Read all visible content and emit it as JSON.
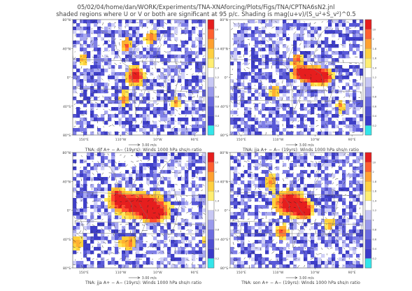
{
  "header": {
    "line1": "05/02/04/home/dan/WORK/Experiments/TNA-XNAforcing/Plots/Figs/TNA/CPTNA6sN2.jnl",
    "line2": "shaded regions where U or V or both are significant at 95 p/c. Shading is mag(u+v)/(S_u²+S_v²)^0.5"
  },
  "chart_data": [
    {
      "type": "heatmap",
      "panel": "top-left",
      "title": "TNA: djf A+ − A−  (19yrs): Winds 1000 hPa shs/n ratio",
      "ytick_labels": [
        "80°N",
        "40°N",
        "0°",
        "40°S",
        "80°S"
      ],
      "xtick_labels": [
        "150°E",
        "110°W",
        "10°W",
        "90°E"
      ],
      "reference_vector": "3.00 m/s",
      "colorbar": {
        "ticks": [
          "0.2",
          "0.4",
          "0.6",
          "0.8",
          "1",
          "1.2",
          "1.4",
          "1.6",
          "1.8",
          "2",
          "10"
        ],
        "range": [
          0,
          10
        ]
      },
      "hotspots": [
        {
          "lon": -70,
          "lat": 2,
          "sx": 18,
          "sy": 10,
          "amp": 2.1
        },
        {
          "lon": -95,
          "lat": 45,
          "sx": 12,
          "sy": 9,
          "amp": 1.5
        },
        {
          "lon": -30,
          "lat": 55,
          "sx": 15,
          "sy": 8,
          "amp": 1.4
        },
        {
          "lon": -100,
          "lat": -30,
          "sx": 12,
          "sy": 10,
          "amp": 1.3
        },
        {
          "lon": 40,
          "lat": -35,
          "sx": 10,
          "sy": 8,
          "amp": 1.3
        },
        {
          "lon": 150,
          "lat": 25,
          "sx": 12,
          "sy": 8,
          "amp": 1.2
        }
      ]
    },
    {
      "type": "heatmap",
      "panel": "top-right",
      "title": "TNA: jja A+ − A−  (19yrs): Winds 1000 hPa shs/n ratio",
      "ytick_labels": [
        "80°N",
        "40°N",
        "0°",
        "40°S",
        "80°S"
      ],
      "xtick_labels": [
        "150°E",
        "110°W",
        "10°W",
        "90°E"
      ],
      "reference_vector": "3.00 m/s",
      "colorbar": {
        "ticks": [
          "0.2",
          "0.4",
          "0.6",
          "0.8",
          "1",
          "1.2",
          "1.4",
          "1.6",
          "1.8",
          "2",
          "10"
        ],
        "range": [
          0,
          10
        ]
      },
      "hotspots": [
        {
          "lon": -30,
          "lat": 5,
          "sx": 30,
          "sy": 8,
          "amp": 2.4
        },
        {
          "lon": 10,
          "lat": 0,
          "sx": 22,
          "sy": 7,
          "amp": 2.0
        },
        {
          "lon": -60,
          "lat": 25,
          "sx": 12,
          "sy": 8,
          "amp": 1.4
        },
        {
          "lon": -120,
          "lat": -20,
          "sx": 12,
          "sy": 8,
          "amp": 1.2
        },
        {
          "lon": 60,
          "lat": -40,
          "sx": 12,
          "sy": 8,
          "amp": 1.2
        }
      ]
    },
    {
      "type": "heatmap",
      "panel": "bottom-left",
      "title": "TNA: jja A+ − A−  (19yrs): Winds 1000 hPa shs/n ratio",
      "ytick_labels": [
        "80°N",
        "40°N",
        "0°",
        "40°S",
        "80°S"
      ],
      "xtick_labels": [
        "150°E",
        "110°W",
        "10°W",
        "90°E"
      ],
      "reference_vector": "3.00 m/s",
      "colorbar": {
        "ticks": [
          "0.2",
          "0.4",
          "0.6",
          "0.8",
          "1",
          "1.2",
          "1.4",
          "1.6",
          "1.8",
          "2",
          "10"
        ],
        "range": [
          0,
          10
        ]
      },
      "hotspots": [
        {
          "lon": -60,
          "lat": 8,
          "sx": 50,
          "sy": 12,
          "amp": 2.3
        },
        {
          "lon": -20,
          "lat": -5,
          "sx": 25,
          "sy": 9,
          "amp": 1.9
        },
        {
          "lon": -120,
          "lat": 20,
          "sx": 15,
          "sy": 9,
          "amp": 1.5
        },
        {
          "lon": -90,
          "lat": -45,
          "sx": 20,
          "sy": 8,
          "amp": 1.4
        },
        {
          "lon": 130,
          "lat": -45,
          "sx": 15,
          "sy": 8,
          "amp": 1.3
        }
      ]
    },
    {
      "type": "heatmap",
      "panel": "bottom-right",
      "title": "TNA: son A+ − A−  (19yrs): Winds 1000 hPa shs/n ratio",
      "ytick_labels": [
        "80°N",
        "40°N",
        "0°",
        "40°S",
        "80°S"
      ],
      "xtick_labels": [
        "150°E",
        "110°W",
        "10°W",
        "90°E"
      ],
      "reference_vector": "3.00 m/s",
      "colorbar": {
        "ticks": [
          "0.2",
          "0.4",
          "0.6",
          "0.8",
          "1",
          "1.2",
          "1.4",
          "1.6",
          "1.8",
          "2",
          "10"
        ],
        "range": [
          0,
          10
        ]
      },
      "hotspots": [
        {
          "lon": -80,
          "lat": 10,
          "sx": 30,
          "sy": 12,
          "amp": 2.3
        },
        {
          "lon": -40,
          "lat": 0,
          "sx": 18,
          "sy": 9,
          "amp": 2.0
        },
        {
          "lon": -100,
          "lat": -30,
          "sx": 14,
          "sy": 8,
          "amp": 1.5
        },
        {
          "lon": 30,
          "lat": -20,
          "sx": 12,
          "sy": 8,
          "amp": 1.3
        },
        {
          "lon": -130,
          "lat": 40,
          "sx": 12,
          "sy": 8,
          "amp": 1.3
        }
      ]
    }
  ],
  "colorscale": [
    "#ffffff",
    "#3f3fc8",
    "#5a5ad8",
    "#7f7fe6",
    "#aaaaf0",
    "#d0d0f6",
    "#ffe85a",
    "#ffd03a",
    "#ffb030",
    "#ff8030",
    "#ff4b30",
    "#e61e1e"
  ],
  "colorbar_colors": [
    "#33e5ea",
    "#3a3ac9",
    "#4f4fd3",
    "#6c6ce0",
    "#9a9aec",
    "#c8c8f4",
    "#ffffff",
    "#ffee72",
    "#ffd040",
    "#ffa030",
    "#ff6030",
    "#e61e1e"
  ],
  "seed": 12345
}
